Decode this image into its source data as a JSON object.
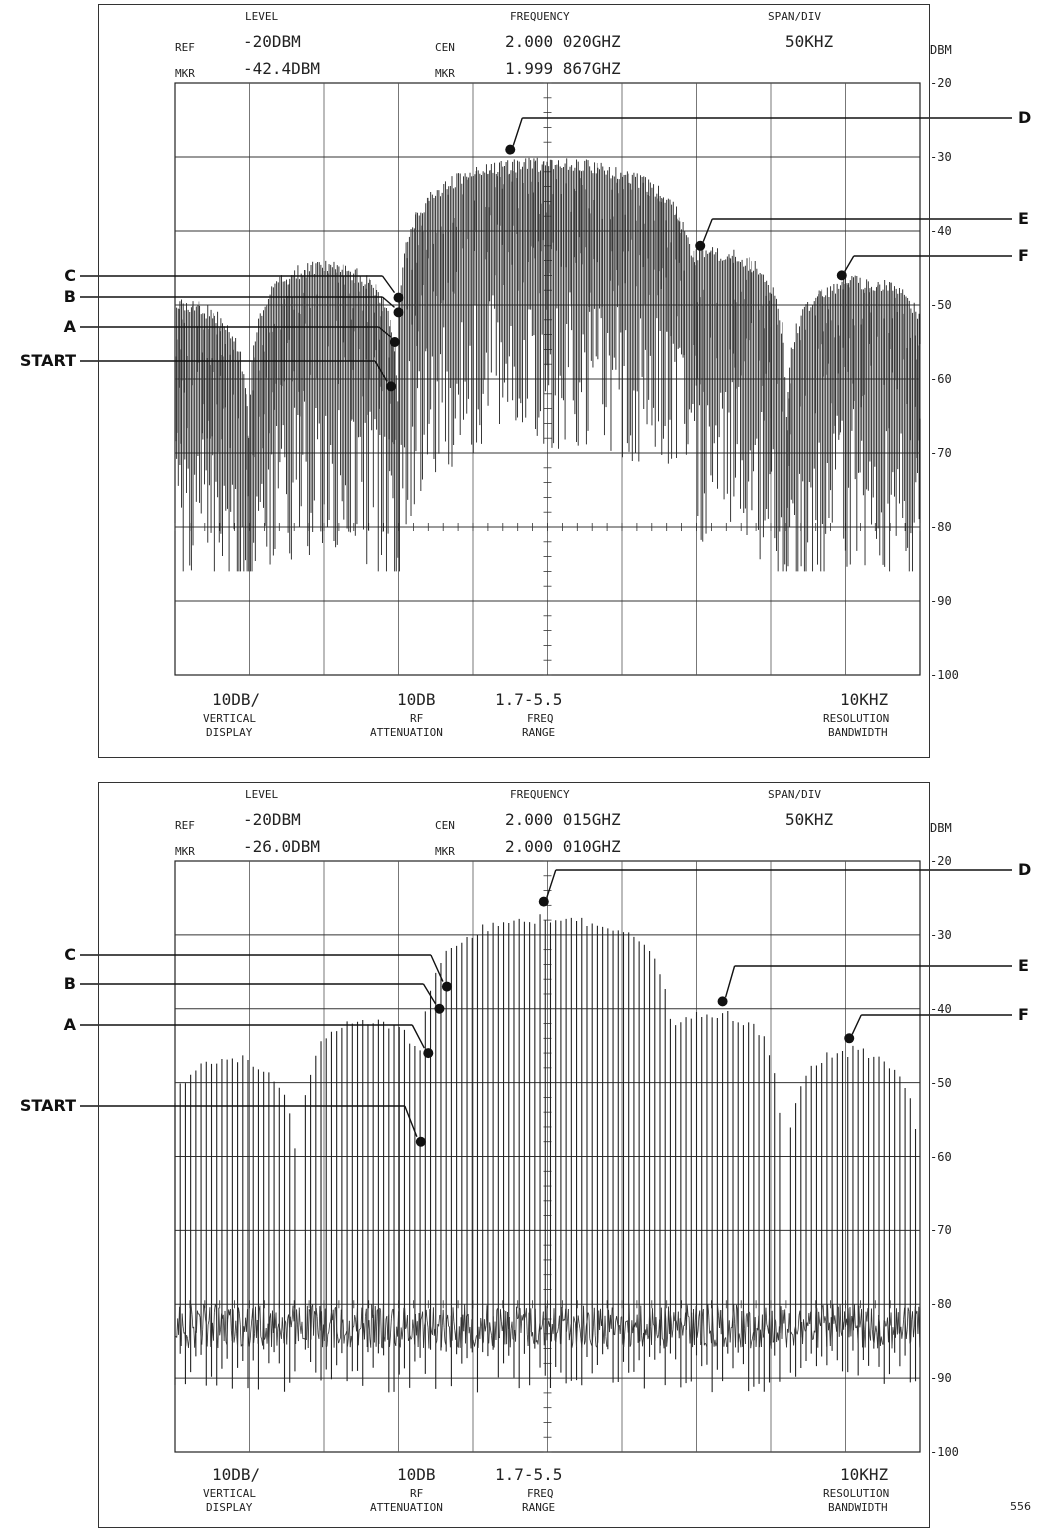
{
  "page_number": "556",
  "chart_data": [
    {
      "type": "line",
      "title": "",
      "xlabel": "",
      "ylabel": "DBM",
      "ylim": [
        -100,
        -20
      ],
      "y_ticks": [
        "-20",
        "-30",
        "-40",
        "-50",
        "-60",
        "-70",
        "-80",
        "-90",
        "-100"
      ],
      "grid": true,
      "header": {
        "level_label": "LEVEL",
        "frequency_label": "FREQUENCY",
        "span_label": "SPAN/DIV",
        "ref_label": "REF",
        "ref_value": "-20DBM",
        "cen_label": "CEN",
        "cen_value": "2.000 020GHZ",
        "span_value": "50KHZ",
        "mkr_label": "MKR",
        "mkr_level": "-42.4DBM",
        "mkr_freq_label": "MKR",
        "mkr_freq": "1.999 867GHZ"
      },
      "footer": {
        "vdiv_value": "10DB/",
        "vdiv_label1": "VERTICAL",
        "vdiv_label2": "DISPLAY",
        "atten_value": "10DB",
        "atten_label1": "RF",
        "atten_label2": "ATTENUATION",
        "range_value": "1.7-5.5",
        "range_label1": "FREQ",
        "range_label2": "RANGE",
        "rbw_value": "10KHZ",
        "rbw_label1": "RESOLUTION",
        "rbw_label2": "BANDWIDTH"
      },
      "style": "dense",
      "lobes": [
        {
          "center_div": 0.0,
          "peak_dbm": -49,
          "halfwidth_div": 1.0
        },
        {
          "center_div": 2.0,
          "peak_dbm": -44,
          "halfwidth_div": 1.0
        },
        {
          "center_div": 5.0,
          "peak_dbm": -30,
          "halfwidth_div": 2.0
        },
        {
          "center_div": 7.2,
          "peak_dbm": -42,
          "halfwidth_div": 1.0
        },
        {
          "center_div": 9.2,
          "peak_dbm": -46,
          "halfwidth_div": 1.0
        }
      ],
      "floor_dbm": -82,
      "markers": [
        {
          "label": "START",
          "x_div": 2.9,
          "y_dbm": -61
        },
        {
          "label": "A",
          "x_div": 2.95,
          "y_dbm": -55
        },
        {
          "label": "B",
          "x_div": 3.0,
          "y_dbm": -51
        },
        {
          "label": "C",
          "x_div": 3.0,
          "y_dbm": -49
        },
        {
          "label": "D",
          "x_div": 4.5,
          "y_dbm": -29
        },
        {
          "label": "E",
          "x_div": 7.05,
          "y_dbm": -42
        },
        {
          "label": "F",
          "x_div": 8.95,
          "y_dbm": -46
        }
      ],
      "callouts": [
        "C",
        "B",
        "A",
        "START",
        "D",
        "E",
        "F"
      ]
    },
    {
      "type": "line",
      "title": "",
      "xlabel": "",
      "ylabel": "DBM",
      "ylim": [
        -100,
        -20
      ],
      "y_ticks": [
        "-20",
        "-30",
        "-40",
        "-50",
        "-60",
        "-70",
        "-80",
        "-90",
        "-100"
      ],
      "grid": true,
      "header": {
        "level_label": "LEVEL",
        "frequency_label": "FREQUENCY",
        "span_label": "SPAN/DIV",
        "ref_label": "REF",
        "ref_value": "-20DBM",
        "cen_label": "CEN",
        "cen_value": "2.000 015GHZ",
        "span_value": "50KHZ",
        "mkr_label": "MKR",
        "mkr_level": "-26.0DBM",
        "mkr_freq_label": "MKR",
        "mkr_freq": "2.000 010GHZ"
      },
      "footer": {
        "vdiv_value": "10DB/",
        "vdiv_label1": "VERTICAL",
        "vdiv_label2": "DISPLAY",
        "atten_value": "10DB",
        "atten_label1": "RF",
        "atten_label2": "ATTENUATION",
        "range_value": "1.7-5.5",
        "range_label1": "FREQ",
        "range_label2": "RANGE",
        "rbw_value": "10KHZ",
        "rbw_label1": "RESOLUTION",
        "rbw_label2": "BANDWIDTH"
      },
      "style": "lines",
      "lobes": [
        {
          "center_div": 0.75,
          "peak_dbm": -46,
          "halfwidth_div": 0.9
        },
        {
          "center_div": 2.6,
          "peak_dbm": -41,
          "halfwidth_div": 0.9
        },
        {
          "center_div": 5.0,
          "peak_dbm": -27,
          "halfwidth_div": 1.7
        },
        {
          "center_div": 7.25,
          "peak_dbm": -40,
          "halfwidth_div": 0.9
        },
        {
          "center_div": 9.1,
          "peak_dbm": -45,
          "halfwidth_div": 0.9
        }
      ],
      "floor_dbm": -82,
      "markers": [
        {
          "label": "START",
          "x_div": 3.3,
          "y_dbm": -58
        },
        {
          "label": "A",
          "x_div": 3.4,
          "y_dbm": -46
        },
        {
          "label": "B",
          "x_div": 3.55,
          "y_dbm": -40
        },
        {
          "label": "C",
          "x_div": 3.65,
          "y_dbm": -37
        },
        {
          "label": "D",
          "x_div": 4.95,
          "y_dbm": -25.5
        },
        {
          "label": "E",
          "x_div": 7.35,
          "y_dbm": -39
        },
        {
          "label": "F",
          "x_div": 9.05,
          "y_dbm": -44
        }
      ],
      "callouts": [
        "C",
        "B",
        "A",
        "START",
        "D",
        "E",
        "F"
      ]
    }
  ]
}
